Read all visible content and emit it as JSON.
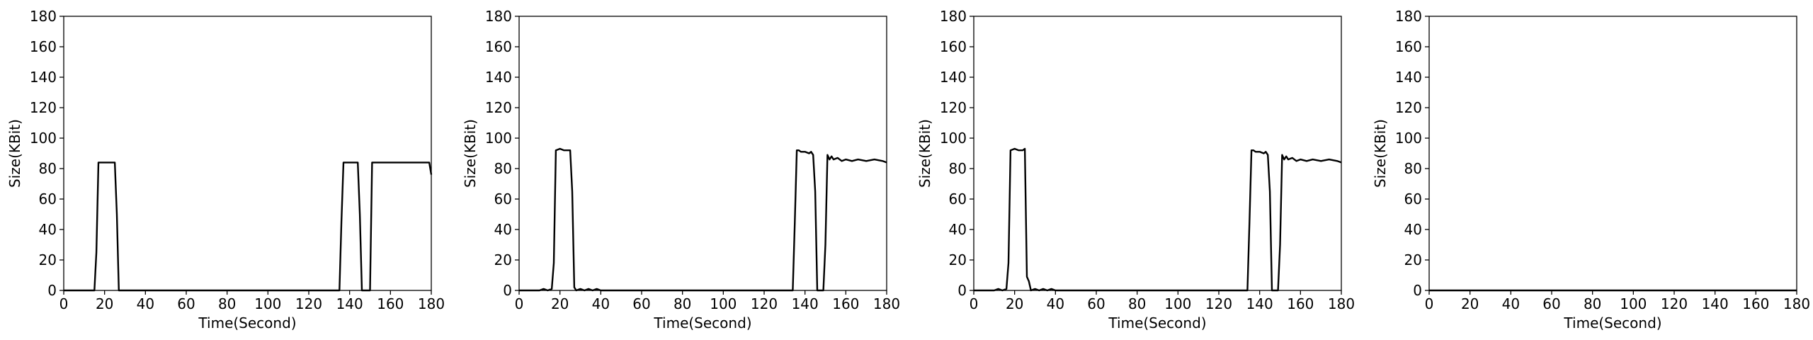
{
  "chart_data": [
    {
      "type": "line",
      "xlabel": "Time(Second)",
      "ylabel": "Size(KBit)",
      "xlim": [
        0,
        180
      ],
      "ylim": [
        0,
        180
      ],
      "xticks": [
        0,
        20,
        40,
        60,
        80,
        100,
        120,
        140,
        160,
        180
      ],
      "yticks": [
        0,
        20,
        40,
        60,
        80,
        100,
        120,
        140,
        160,
        180
      ],
      "grid": false,
      "series": [
        {
          "color": "#000000",
          "x": [
            0,
            15,
            16,
            17,
            18,
            19,
            20,
            21,
            22,
            23,
            24,
            25,
            26,
            27,
            28,
            40,
            60,
            80,
            100,
            120,
            135,
            136,
            137,
            138,
            139,
            140,
            141,
            142,
            143,
            144,
            145,
            146,
            147,
            148,
            149,
            150,
            151,
            152,
            153,
            155,
            160,
            165,
            170,
            175,
            178,
            179,
            180
          ],
          "y": [
            0,
            0,
            25,
            84,
            84,
            84,
            84,
            84,
            84,
            84,
            84,
            84,
            50,
            0,
            0,
            0,
            0,
            0,
            0,
            0,
            0,
            45,
            84,
            84,
            84,
            84,
            84,
            84,
            84,
            84,
            50,
            0,
            0,
            0,
            0,
            0,
            84,
            84,
            84,
            84,
            84,
            84,
            84,
            84,
            84,
            84,
            76
          ]
        }
      ]
    },
    {
      "type": "line",
      "xlabel": "Time(Second)",
      "ylabel": "Size(KBit)",
      "xlim": [
        0,
        180
      ],
      "ylim": [
        0,
        180
      ],
      "xticks": [
        0,
        20,
        40,
        60,
        80,
        100,
        120,
        140,
        160,
        180
      ],
      "yticks": [
        0,
        20,
        40,
        60,
        80,
        100,
        120,
        140,
        160,
        180
      ],
      "grid": false,
      "series": [
        {
          "color": "#000000",
          "x": [
            0,
            10,
            12,
            14,
            16,
            17,
            18,
            20,
            22,
            24,
            25,
            26,
            27,
            28,
            30,
            32,
            34,
            36,
            38,
            40,
            50,
            60,
            80,
            100,
            120,
            134,
            135,
            136,
            137,
            138,
            140,
            142,
            143,
            144,
            145,
            146,
            147,
            148,
            149,
            150,
            151,
            152,
            153,
            154,
            156,
            158,
            160,
            163,
            166,
            170,
            174,
            178,
            180
          ],
          "y": [
            0,
            0,
            1,
            0,
            1,
            18,
            92,
            93,
            92,
            92,
            92,
            65,
            2,
            0,
            1,
            0,
            1,
            0,
            1,
            0,
            0,
            0,
            0,
            0,
            0,
            0,
            45,
            92,
            92,
            91,
            91,
            90,
            91,
            89,
            65,
            0,
            0,
            0,
            0,
            30,
            89,
            86,
            88,
            86,
            87,
            85,
            86,
            85,
            86,
            85,
            86,
            85,
            84
          ]
        }
      ]
    },
    {
      "type": "line",
      "xlabel": "Time(Second)",
      "ylabel": "Size(KBit)",
      "xlim": [
        0,
        180
      ],
      "ylim": [
        0,
        180
      ],
      "xticks": [
        0,
        20,
        40,
        60,
        80,
        100,
        120,
        140,
        160,
        180
      ],
      "yticks": [
        0,
        20,
        40,
        60,
        80,
        100,
        120,
        140,
        160,
        180
      ],
      "grid": false,
      "series": [
        {
          "color": "#000000",
          "x": [
            0,
            10,
            12,
            14,
            16,
            17,
            18,
            20,
            22,
            24,
            25,
            26,
            27,
            28,
            30,
            32,
            34,
            36,
            38,
            40,
            50,
            60,
            80,
            100,
            120,
            134,
            135,
            136,
            137,
            138,
            140,
            142,
            143,
            144,
            145,
            146,
            147,
            148,
            149,
            150,
            151,
            152,
            153,
            154,
            156,
            158,
            160,
            163,
            166,
            170,
            174,
            178,
            180
          ],
          "y": [
            0,
            0,
            1,
            0,
            1,
            18,
            92,
            93,
            92,
            92,
            93,
            9,
            6,
            0,
            1,
            0,
            1,
            0,
            1,
            0,
            0,
            0,
            0,
            0,
            0,
            0,
            45,
            92,
            92,
            91,
            91,
            90,
            91,
            89,
            65,
            0,
            0,
            0,
            0,
            30,
            89,
            86,
            88,
            86,
            87,
            85,
            86,
            85,
            86,
            85,
            86,
            85,
            84
          ]
        }
      ]
    },
    {
      "type": "line",
      "xlabel": "Time(Second)",
      "ylabel": "Size(KBit)",
      "xlim": [
        0,
        180
      ],
      "ylim": [
        0,
        180
      ],
      "xticks": [
        0,
        20,
        40,
        60,
        80,
        100,
        120,
        140,
        160,
        180
      ],
      "yticks": [
        0,
        20,
        40,
        60,
        80,
        100,
        120,
        140,
        160,
        180
      ],
      "grid": false,
      "series": [
        {
          "color": "#000000",
          "x": [
            0,
            180
          ],
          "y": [
            0,
            0
          ]
        }
      ]
    }
  ]
}
